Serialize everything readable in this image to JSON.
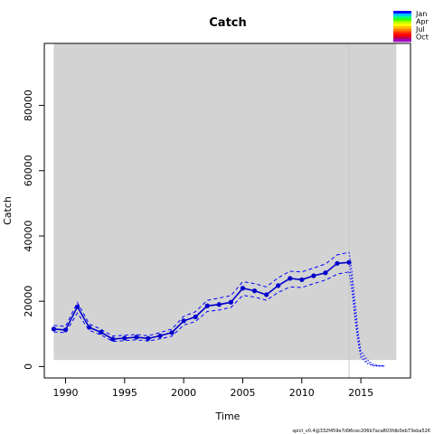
{
  "chart_data": {
    "type": "line",
    "title": "Catch",
    "xlabel": "Time",
    "ylabel": "Catch",
    "xlim": [
      1988.2,
      2019.2
    ],
    "ylim": [
      -3500,
      99000
    ],
    "x_ticks": [
      1990,
      1995,
      2000,
      2005,
      2010,
      2015
    ],
    "x_tick_labels": [
      "1990",
      "1995",
      "2000",
      "2005",
      "2010",
      "2015"
    ],
    "y_ticks": [
      0,
      20000,
      40000,
      60000,
      80000
    ],
    "y_tick_labels": [
      "0",
      "20000",
      "40000",
      "60000",
      "80000"
    ],
    "grid": false,
    "shaded_region": {
      "x": [
        1989,
        2018
      ],
      "y": [
        2000,
        99000
      ],
      "color": "#d3d3d3"
    },
    "vertical_line": {
      "x": 2014,
      "color": "#c8c8c8"
    },
    "series": [
      {
        "name": "",
        "style": "points-line",
        "color": "#0000cd",
        "x": [
          1989,
          1990,
          1991,
          1992,
          1993,
          1994,
          1995,
          1996,
          1997,
          1998,
          1999,
          2000,
          2001,
          2002,
          2003,
          2004,
          2005,
          2006,
          2007,
          2008,
          2009,
          2010,
          2011,
          2012,
          2013,
          2014
        ],
        "y": [
          11500,
          11200,
          18300,
          12000,
          10500,
          8400,
          8700,
          9000,
          8600,
          9400,
          10400,
          14000,
          15200,
          18600,
          19000,
          19700,
          24000,
          23200,
          22000,
          24800,
          27000,
          26600,
          27800,
          28700,
          31600,
          31900
        ]
      },
      {
        "name": "",
        "style": "dashed",
        "color": "#0000ff",
        "x": [
          1989,
          1990,
          1991,
          1992,
          1993,
          1994,
          1995,
          1996,
          1997,
          1998,
          1999,
          2000,
          2001,
          2002,
          2003,
          2004,
          2005,
          2006,
          2007,
          2008,
          2009,
          2010,
          2011,
          2012,
          2013,
          2014
        ],
        "y": [
          12600,
          12300,
          19600,
          13100,
          11400,
          9300,
          9600,
          9800,
          9400,
          10400,
          11500,
          15400,
          16800,
          20300,
          21000,
          21700,
          26000,
          25400,
          24400,
          27200,
          29200,
          29000,
          30200,
          31400,
          34200,
          35000
        ]
      },
      {
        "name": "",
        "style": "dashed",
        "color": "#0000ff",
        "x": [
          1989,
          1990,
          1991,
          1992,
          1993,
          1994,
          1995,
          1996,
          1997,
          1998,
          1999,
          2000,
          2001,
          2002,
          2003,
          2004,
          2005,
          2006,
          2007,
          2008,
          2009,
          2010,
          2011,
          2012,
          2013,
          2014
        ],
        "y": [
          10600,
          10400,
          16400,
          11100,
          9700,
          7700,
          7900,
          8200,
          7800,
          8500,
          9300,
          12700,
          13800,
          16900,
          17300,
          18100,
          21800,
          21300,
          20300,
          22700,
          24400,
          24200,
          25400,
          26500,
          28300,
          29000
        ]
      },
      {
        "name": "",
        "style": "dotted",
        "color": "#0000ff",
        "x": [
          2014,
          2014.25,
          2014.5,
          2014.75,
          2015,
          2015.5,
          2016,
          2016.5,
          2017
        ],
        "y": [
          31900,
          26000,
          17000,
          9000,
          3500,
          1500,
          400,
          200,
          150
        ]
      },
      {
        "name": "",
        "style": "dotted",
        "color": "#0000ff",
        "x": [
          2014,
          2014.25,
          2014.5,
          2014.75,
          2015,
          2015.5,
          2016,
          2016.5,
          2017
        ],
        "y": [
          35000,
          29000,
          20000,
          11000,
          4800,
          2200,
          700,
          300,
          250
        ]
      },
      {
        "name": "",
        "style": "dotted",
        "color": "#0000ff",
        "x": [
          2014,
          2014.25,
          2014.5,
          2014.75,
          2015,
          2015.5,
          2016,
          2016.5,
          2017
        ],
        "y": [
          29000,
          23000,
          14500,
          7500,
          2700,
          1000,
          200,
          100,
          80
        ]
      }
    ],
    "legend": {
      "placement": "top-right",
      "labels": [
        "Jan",
        "Apr",
        "Jul",
        "Oct"
      ],
      "colors": [
        "#0000ff",
        "#00bfff",
        "#00ff80",
        "#40ff00",
        "#c0ff00",
        "#ffff00",
        "#ffbf00",
        "#ff8000",
        "#ff3000",
        "#ff0000",
        "#c0004a",
        "#a000c0"
      ]
    },
    "footnote": "spict_v0.4@332f459e7d96cec206b7aca803fdb0eb73eba526"
  }
}
